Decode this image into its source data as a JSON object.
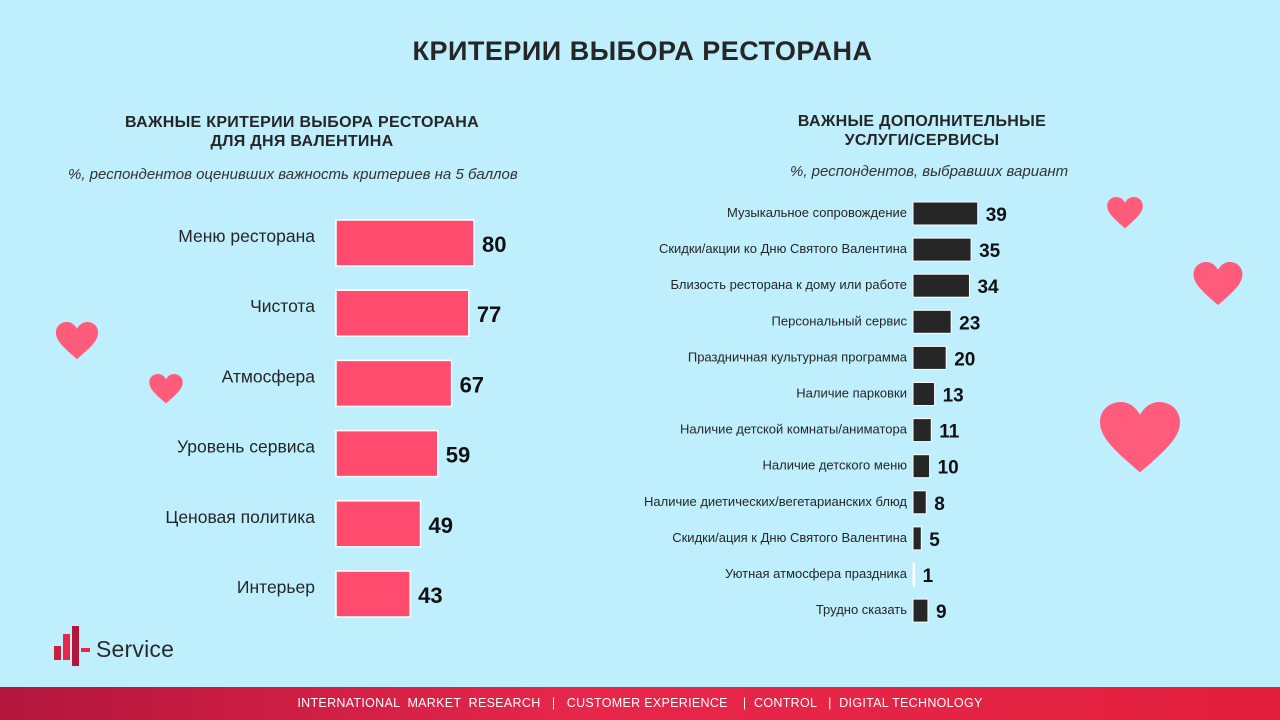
{
  "title": "КРИТЕРИИ ВЫБОРА РЕСТОРАНА",
  "left_panel": {
    "subtitle_line1": "ВАЖНЫЕ  КРИТЕРИИ ВЫБОРА  РЕСТОРАНА",
    "subtitle_line2": "ДЛЯ ДНЯ ВАЛЕНТИНА",
    "note": "%, респондентов оценивших важность критериев на 5 баллов"
  },
  "right_panel": {
    "subtitle_line1": "ВАЖНЫЕ  ДОПОЛНИТЕЛЬНЫЕ",
    "subtitle_line2": "УСЛУГИ/СЕРВИСЫ",
    "note": "%, респондентов, выбравших вариант"
  },
  "chart_data": [
    {
      "type": "bar",
      "orientation": "horizontal",
      "title": "ВАЖНЫЕ КРИТЕРИИ ВЫБОРА РЕСТОРАНА ДЛЯ ДНЯ ВАЛЕНТИНА",
      "categories": [
        "Меню ресторана",
        "Чистота",
        "Атмосфера",
        "Уровень сервиса",
        "Ценовая политика",
        "Интерьер"
      ],
      "values": [
        80,
        77,
        67,
        59,
        49,
        43
      ],
      "color": "#ff4b6e",
      "unit": "%"
    },
    {
      "type": "bar",
      "orientation": "horizontal",
      "title": "ВАЖНЫЕ ДОПОЛНИТЕЛЬНЫЕ УСЛУГИ/СЕРВИСЫ",
      "categories": [
        "Музыкальное сопровождение",
        "Скидки/акции ко Дню Святого Валентина",
        "Близость ресторана к дому или работе",
        "Персональный сервис",
        "Праздничная культурная программа",
        "Наличие парковки",
        "Наличие детской комнаты/аниматора",
        "Наличие детского меню",
        "Наличие диетических/вегетарианских блюд",
        "Скидки/ация к Дню Святого Валентина",
        "Уютная атмосфера праздника",
        "Трудно сказать"
      ],
      "values": [
        39,
        35,
        34,
        23,
        20,
        13,
        11,
        10,
        8,
        5,
        1,
        9
      ],
      "color": "#262626",
      "unit": "%"
    }
  ],
  "logo": {
    "text": "Service",
    "icon": "bar-chart-logo-icon"
  },
  "footer": {
    "items": [
      "INTERNATIONAL  MARKET  RESEARCH",
      "CUSTOMER EXPERIENCE",
      "CONTROL",
      "DIGITAL TECHNOLOGY"
    ],
    "separator": "|"
  },
  "colors": {
    "background": "#bfeefd",
    "accent": "#ff4b6e",
    "heart": "#ff5b7a",
    "dark_bar": "#262626"
  }
}
